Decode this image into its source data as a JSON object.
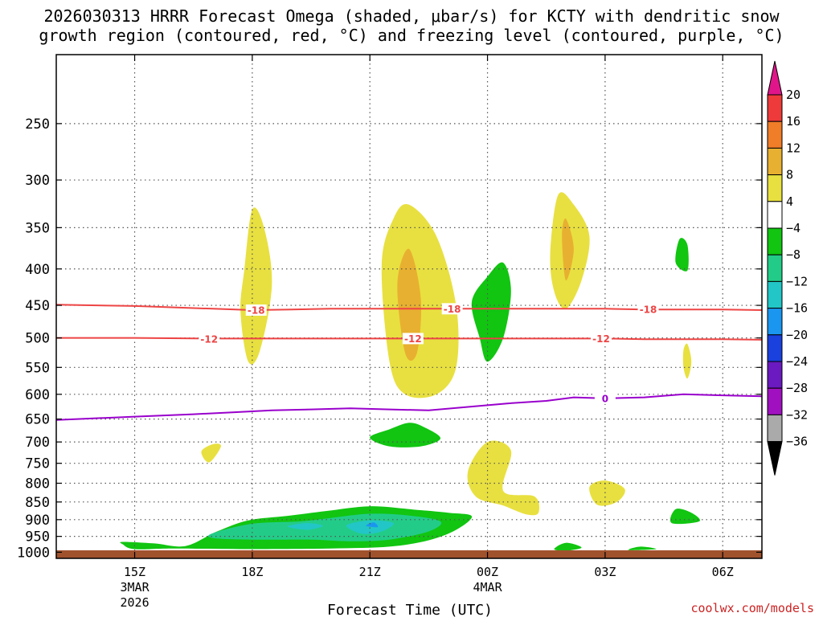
{
  "chart_data": {
    "type": "heatmap",
    "title_line1": "2026030313 HRRR Forecast Omega (shaded, μbar/s) for KCTY with dendritic snow",
    "title_line2": "growth region (contoured, red, °C) and freezing level (contoured, purple, °C)",
    "xlabel": "Forecast Time (UTC)",
    "credit": "coolwx.com/models",
    "x_range_hours": [
      13.0,
      31.0
    ],
    "x_ticks": [
      {
        "hour": 15,
        "label": "15Z",
        "sub1": "3MAR",
        "sub2": "2026"
      },
      {
        "hour": 18,
        "label": "18Z",
        "sub1": "",
        "sub2": ""
      },
      {
        "hour": 21,
        "label": "21Z",
        "sub1": "",
        "sub2": ""
      },
      {
        "hour": 24,
        "label": "00Z",
        "sub1": "4MAR",
        "sub2": ""
      },
      {
        "hour": 27,
        "label": "03Z",
        "sub1": "",
        "sub2": ""
      },
      {
        "hour": 30,
        "label": "06Z",
        "sub1": "",
        "sub2": ""
      }
    ],
    "y_axis": "pressure (mb), log scale, inverted",
    "y_range_mb": [
      1020,
      200
    ],
    "y_ticks": [
      250,
      300,
      350,
      400,
      450,
      500,
      550,
      600,
      650,
      700,
      750,
      800,
      850,
      900,
      950,
      1000
    ],
    "colorbar": {
      "labels": [
        "20",
        "16",
        "12",
        "8",
        "4",
        "−4",
        "−8",
        "−12",
        "−16",
        "−20",
        "−24",
        "−28",
        "−32",
        "−36"
      ],
      "colors": [
        "#e0158a",
        "#ee3a3a",
        "#f07d28",
        "#e8b030",
        "#e8e040",
        "#ffffff",
        "#11c511",
        "#22cc88",
        "#22c6c6",
        "#1a96f0",
        "#1a40dd",
        "#6a1ac0",
        "#a010c0",
        "#aaaaaa",
        "#000000"
      ]
    },
    "contours": [
      {
        "name": "dgz-minus18",
        "label": "-18",
        "color": "#ee4444",
        "points": [
          [
            13.0,
            449
          ],
          [
            15.0,
            451
          ],
          [
            17.0,
            455
          ],
          [
            18.0,
            457
          ],
          [
            19.0,
            456
          ],
          [
            20.0,
            455
          ],
          [
            21.0,
            455
          ],
          [
            22.0,
            455
          ],
          [
            23.0,
            455
          ],
          [
            24.0,
            455
          ],
          [
            25.0,
            455
          ],
          [
            26.0,
            455
          ],
          [
            27.0,
            455
          ],
          [
            28.0,
            456
          ],
          [
            29.0,
            456
          ],
          [
            30.0,
            456
          ],
          [
            31.0,
            457
          ]
        ],
        "label_at": [
          [
            18.1,
            457
          ],
          [
            23.1,
            455
          ],
          [
            28.1,
            456
          ]
        ]
      },
      {
        "name": "dgz-minus12",
        "label": "-12",
        "color": "#ee4444",
        "points": [
          [
            13.0,
            500
          ],
          [
            15.0,
            500
          ],
          [
            17.0,
            501
          ],
          [
            18.0,
            501
          ],
          [
            19.0,
            501
          ],
          [
            20.0,
            501
          ],
          [
            21.0,
            501
          ],
          [
            22.0,
            501
          ],
          [
            23.0,
            501
          ],
          [
            24.0,
            501
          ],
          [
            25.0,
            501
          ],
          [
            26.0,
            501
          ],
          [
            27.0,
            501
          ],
          [
            28.0,
            502
          ],
          [
            29.0,
            502
          ],
          [
            30.0,
            502
          ],
          [
            31.0,
            503
          ]
        ],
        "label_at": [
          [
            16.9,
            502
          ],
          [
            22.1,
            501
          ],
          [
            26.9,
            501
          ]
        ]
      },
      {
        "name": "freezing-level",
        "label": "0",
        "color": "#9900cc",
        "points": [
          [
            13.0,
            652
          ],
          [
            15.0,
            645
          ],
          [
            16.5,
            640
          ],
          [
            17.5,
            636
          ],
          [
            18.5,
            632
          ],
          [
            19.5,
            630
          ],
          [
            20.5,
            628
          ],
          [
            21.5,
            630
          ],
          [
            22.5,
            632
          ],
          [
            23.5,
            625
          ],
          [
            24.5,
            618
          ],
          [
            25.5,
            613
          ],
          [
            26.2,
            606
          ],
          [
            27.0,
            608
          ],
          [
            28.0,
            606
          ],
          [
            29.0,
            600
          ],
          [
            30.0,
            602
          ],
          [
            31.0,
            604
          ]
        ],
        "label_at": [
          [
            27.0,
            608
          ]
        ]
      }
    ],
    "omega_regions": [
      {
        "name": "rising-green-low",
        "value_class": "-4",
        "points": [
          [
            14.7,
            967
          ],
          [
            15.5,
            972
          ],
          [
            16.3,
            980
          ],
          [
            17.1,
            935
          ],
          [
            17.9,
            902
          ],
          [
            18.9,
            889
          ],
          [
            19.9,
            875
          ],
          [
            21.0,
            862
          ],
          [
            22.1,
            871
          ],
          [
            23.0,
            880
          ],
          [
            23.6,
            890
          ],
          [
            23.2,
            930
          ],
          [
            22.5,
            962
          ],
          [
            21.5,
            982
          ],
          [
            20.0,
            988
          ],
          [
            18.0,
            990
          ],
          [
            16.0,
            988
          ],
          [
            15.0,
            990
          ],
          [
            14.7,
            975
          ]
        ]
      },
      {
        "name": "rising-teal-low",
        "value_class": "-8",
        "points": [
          [
            17.0,
            940
          ],
          [
            18.0,
            912
          ],
          [
            19.2,
            905
          ],
          [
            20.0,
            895
          ],
          [
            21.0,
            883
          ],
          [
            22.0,
            888
          ],
          [
            22.8,
            905
          ],
          [
            22.5,
            935
          ],
          [
            21.5,
            960
          ],
          [
            20.5,
            965
          ],
          [
            19.5,
            960
          ],
          [
            18.0,
            960
          ],
          [
            17.0,
            955
          ]
        ]
      },
      {
        "name": "rising-cyan-core-1",
        "value_class": "-12",
        "points": [
          [
            18.9,
            920
          ],
          [
            19.4,
            910
          ],
          [
            19.8,
            918
          ],
          [
            19.4,
            930
          ]
        ]
      },
      {
        "name": "rising-cyan-core-2",
        "value_class": "-12",
        "points": [
          [
            20.4,
            917
          ],
          [
            21.0,
            902
          ],
          [
            21.6,
            910
          ],
          [
            21.3,
            935
          ],
          [
            20.8,
            942
          ]
        ]
      },
      {
        "name": "rising-blue-core",
        "value_class": "-16",
        "points": [
          [
            20.9,
            918
          ],
          [
            21.1,
            908
          ],
          [
            21.2,
            922
          ]
        ]
      },
      {
        "name": "rising-green-700",
        "value_class": "-4",
        "points": [
          [
            21.0,
            690
          ],
          [
            21.5,
            672
          ],
          [
            22.0,
            658
          ],
          [
            22.4,
            668
          ],
          [
            22.8,
            692
          ],
          [
            22.3,
            710
          ],
          [
            21.5,
            710
          ]
        ]
      },
      {
        "name": "rising-green-450",
        "value_class": "-4",
        "points": [
          [
            23.6,
            445
          ],
          [
            24.0,
            410
          ],
          [
            24.4,
            392
          ],
          [
            24.6,
            430
          ],
          [
            24.4,
            500
          ],
          [
            24.0,
            540
          ],
          [
            23.8,
            500
          ]
        ]
      },
      {
        "name": "rising-green-395",
        "value_class": "-4",
        "points": [
          [
            28.8,
            392
          ],
          [
            28.9,
            363
          ],
          [
            29.1,
            370
          ],
          [
            29.1,
            402
          ]
        ]
      },
      {
        "name": "rising-green-890",
        "value_class": "-4",
        "points": [
          [
            28.7,
            910
          ],
          [
            28.8,
            870
          ],
          [
            29.2,
            880
          ],
          [
            29.4,
            905
          ]
        ]
      },
      {
        "name": "rising-green-990a",
        "value_class": "-4",
        "points": [
          [
            25.7,
            990
          ],
          [
            26.0,
            970
          ],
          [
            26.4,
            985
          ],
          [
            26.0,
            995
          ]
        ]
      },
      {
        "name": "rising-green-990b",
        "value_class": "-4",
        "points": [
          [
            27.6,
            993
          ],
          [
            27.9,
            982
          ],
          [
            28.3,
            990
          ]
        ]
      },
      {
        "name": "sinking-yellow-400",
        "value_class": "4",
        "points": [
          [
            17.8,
            400
          ],
          [
            18.0,
            330
          ],
          [
            18.3,
            350
          ],
          [
            18.5,
            420
          ],
          [
            18.2,
            520
          ],
          [
            17.9,
            540
          ],
          [
            17.7,
            460
          ]
        ]
      },
      {
        "name": "sinking-yellow-450",
        "value_class": "4",
        "points": [
          [
            21.3,
            395
          ],
          [
            21.6,
            340
          ],
          [
            22.0,
            325
          ],
          [
            22.7,
            360
          ],
          [
            23.2,
            450
          ],
          [
            23.2,
            550
          ],
          [
            22.7,
            600
          ],
          [
            21.9,
            600
          ],
          [
            21.5,
            540
          ]
        ]
      },
      {
        "name": "sinking-orange-450",
        "value_class": "8",
        "points": [
          [
            21.7,
            420
          ],
          [
            22.0,
            375
          ],
          [
            22.3,
            440
          ],
          [
            22.2,
            525
          ],
          [
            21.9,
            525
          ]
        ]
      },
      {
        "name": "sinking-yellow-370",
        "value_class": "4",
        "points": [
          [
            25.6,
            380
          ],
          [
            25.8,
            315
          ],
          [
            26.2,
            325
          ],
          [
            26.6,
            360
          ],
          [
            26.4,
            415
          ],
          [
            26.0,
            455
          ],
          [
            25.7,
            430
          ]
        ]
      },
      {
        "name": "sinking-orange-370",
        "value_class": "8",
        "points": [
          [
            25.9,
            360
          ],
          [
            26.0,
            340
          ],
          [
            26.2,
            375
          ],
          [
            26.0,
            415
          ]
        ]
      },
      {
        "name": "sinking-yellow-720",
        "value_class": "4",
        "points": [
          [
            16.7,
            722
          ],
          [
            17.0,
            705
          ],
          [
            17.2,
            710
          ],
          [
            16.9,
            748
          ]
        ]
      },
      {
        "name": "sinking-yellow-760",
        "value_class": "4",
        "points": [
          [
            23.5,
            770
          ],
          [
            24.0,
            700
          ],
          [
            24.6,
            720
          ],
          [
            24.4,
            820
          ],
          [
            25.2,
            835
          ],
          [
            25.3,
            880
          ],
          [
            25.0,
            885
          ],
          [
            24.4,
            860
          ],
          [
            23.7,
            835
          ]
        ]
      },
      {
        "name": "sinking-yellow-810",
        "value_class": "4",
        "points": [
          [
            26.6,
            810
          ],
          [
            27.0,
            793
          ],
          [
            27.5,
            815
          ],
          [
            27.3,
            850
          ],
          [
            26.8,
            858
          ]
        ]
      },
      {
        "name": "sinking-yellow-520",
        "value_class": "4",
        "points": [
          [
            29.0,
            520
          ],
          [
            29.1,
            510
          ],
          [
            29.2,
            540
          ],
          [
            29.1,
            570
          ],
          [
            29.0,
            550
          ]
        ]
      }
    ],
    "surface_bar": {
      "label": "surface",
      "color": "#a0522d"
    }
  }
}
